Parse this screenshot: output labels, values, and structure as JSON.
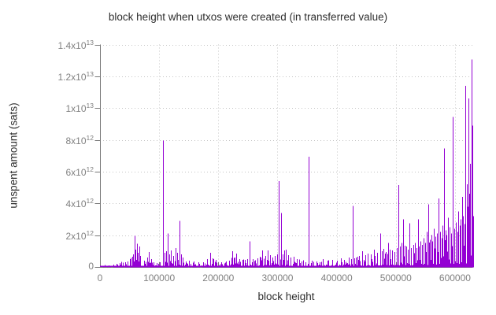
{
  "chart_data": {
    "type": "bar",
    "subtype": "impulses",
    "title": "block height when utxos were created (in transferred value)",
    "xlabel": "block height",
    "ylabel": "unspent amount (sats)",
    "xlim": [
      0,
      630000
    ],
    "ylim": [
      0,
      14000000000000.0
    ],
    "grid": "dotted",
    "legend": "none",
    "series_color": "#9400d3",
    "axis_color": "#777777",
    "grid_color": "#c4c4c4",
    "tick_text_color": "#808080",
    "title_text_color": "#2e2e2e",
    "x_ticks": [
      {
        "v": 0,
        "label": "0"
      },
      {
        "v": 100000,
        "label": "100000"
      },
      {
        "v": 200000,
        "label": "200000"
      },
      {
        "v": 300000,
        "label": "300000"
      },
      {
        "v": 400000,
        "label": "400000"
      },
      {
        "v": 500000,
        "label": "500000"
      },
      {
        "v": 600000,
        "label": "600000"
      }
    ],
    "y_ticks": [
      {
        "v": 0,
        "label": "0"
      },
      {
        "v": 2000000000000.0,
        "label": "2x10^12"
      },
      {
        "v": 4000000000000.0,
        "label": "4x10^12"
      },
      {
        "v": 6000000000000.0,
        "label": "6x10^12"
      },
      {
        "v": 8000000000000.0,
        "label": "8x10^12"
      },
      {
        "v": 10000000000000.0,
        "label": "1x10^13"
      },
      {
        "v": 12000000000000.0,
        "label": "1.2x10^13"
      },
      {
        "v": 14000000000000.0,
        "label": "1.4x10^13"
      }
    ],
    "major_spikes": [
      [
        8000,
        120000000000.0
      ],
      [
        15000,
        90000000000.0
      ],
      [
        22000,
        150000000000.0
      ],
      [
        28000,
        200000000000.0
      ],
      [
        33000,
        250000000000.0
      ],
      [
        36000,
        320000000000.0
      ],
      [
        39000,
        280000000000.0
      ],
      [
        43000,
        300000000000.0
      ],
      [
        47000,
        350000000000.0
      ],
      [
        51000,
        500000000000.0
      ],
      [
        54000,
        650000000000.0
      ],
      [
        56500,
        800000000000.0
      ],
      [
        58500,
        1950000000000.0
      ],
      [
        60500,
        1100000000000.0
      ],
      [
        62500,
        1450000000000.0
      ],
      [
        64500,
        900000000000.0
      ],
      [
        66500,
        1300000000000.0
      ],
      [
        68500,
        700000000000.0
      ],
      [
        74000,
        400000000000.0
      ],
      [
        80000,
        600000000000.0
      ],
      [
        83000,
        950000000000.0
      ],
      [
        86000,
        500000000000.0
      ],
      [
        91000,
        300000000000.0
      ],
      [
        96000,
        250000000000.0
      ],
      [
        101000,
        300000000000.0
      ],
      [
        106000,
        7950000000000.0
      ],
      [
        109500,
        900000000000.0
      ],
      [
        112000,
        1000000000000.0
      ],
      [
        114500,
        2100000000000.0
      ],
      [
        117000,
        800000000000.0
      ],
      [
        119500,
        1050000000000.0
      ],
      [
        124000,
        700000000000.0
      ],
      [
        128000,
        1200000000000.0
      ],
      [
        131000,
        900000000000.0
      ],
      [
        134500,
        2900000000000.0
      ],
      [
        137500,
        800000000000.0
      ],
      [
        140000,
        600000000000.0
      ],
      [
        145000,
        350000000000.0
      ],
      [
        150000,
        400000000000.0
      ],
      [
        158000,
        350000000000.0
      ],
      [
        166000,
        300000000000.0
      ],
      [
        174000,
        300000000000.0
      ],
      [
        181000,
        500000000000.0
      ],
      [
        186000,
        900000000000.0
      ],
      [
        190000,
        550000000000.0
      ],
      [
        196000,
        450000000000.0
      ],
      [
        205000,
        300000000000.0
      ],
      [
        213000,
        350000000000.0
      ],
      [
        218000,
        400000000000.0
      ],
      [
        223000,
        1000000000000.0
      ],
      [
        227000,
        600000000000.0
      ],
      [
        230000,
        850000000000.0
      ],
      [
        236000,
        500000000000.0
      ],
      [
        241000,
        450000000000.0
      ],
      [
        245000,
        450000000000.0
      ],
      [
        249000,
        500000000000.0
      ],
      [
        253000,
        1600000000000.0
      ],
      [
        258000,
        500000000000.0
      ],
      [
        262000,
        400000000000.0
      ],
      [
        266000,
        550000000000.0
      ],
      [
        271000,
        600000000000.0
      ],
      [
        274000,
        1050000000000.0
      ],
      [
        279000,
        700000000000.0
      ],
      [
        283000,
        1050000000000.0
      ],
      [
        288000,
        750000000000.0
      ],
      [
        292000,
        600000000000.0
      ],
      [
        296000,
        700000000000.0
      ],
      [
        299000,
        800000000000.0
      ],
      [
        302000,
        5400000000000.0
      ],
      [
        305500,
        3400000000000.0
      ],
      [
        309000,
        800000000000.0
      ],
      [
        312000,
        1040000000000.0
      ],
      [
        314000,
        1100000000000.0
      ],
      [
        318000,
        750000000000.0
      ],
      [
        322000,
        600000000000.0
      ],
      [
        327000,
        650000000000.0
      ],
      [
        333000,
        500000000000.0
      ],
      [
        340000,
        350000000000.0
      ],
      [
        347000,
        300000000000.0
      ],
      [
        352000,
        6950000000000.0
      ],
      [
        358000,
        400000000000.0
      ],
      [
        366000,
        350000000000.0
      ],
      [
        371000,
        300000000000.0
      ],
      [
        376000,
        500000000000.0
      ],
      [
        384000,
        400000000000.0
      ],
      [
        392000,
        450000000000.0
      ],
      [
        400000,
        400000000000.0
      ],
      [
        407000,
        550000000000.0
      ],
      [
        413000,
        450000000000.0
      ],
      [
        420000,
        600000000000.0
      ],
      [
        424000,
        500000000000.0
      ],
      [
        427000,
        3850000000000.0
      ],
      [
        430000,
        550000000000.0
      ],
      [
        433000,
        600000000000.0
      ],
      [
        438000,
        700000000000.0
      ],
      [
        443000,
        1000000000000.0
      ],
      [
        448000,
        750000000000.0
      ],
      [
        453000,
        850000000000.0
      ],
      [
        458000,
        800000000000.0
      ],
      [
        463000,
        1100000000000.0
      ],
      [
        468000,
        900000000000.0
      ],
      [
        473000,
        2100000000000.0
      ],
      [
        476000,
        1000000000000.0
      ],
      [
        479000,
        1150000000000.0
      ],
      [
        483000,
        950000000000.0
      ],
      [
        487000,
        1500000000000.0
      ],
      [
        490000,
        1100000000000.0
      ],
      [
        494000,
        1050000000000.0
      ],
      [
        498000,
        950000000000.0
      ],
      [
        501000,
        1200000000000.0
      ],
      [
        504000,
        5150000000000.0
      ],
      [
        507000,
        1300000000000.0
      ],
      [
        509500,
        1500000000000.0
      ],
      [
        512000,
        3000000000000.0
      ],
      [
        515000,
        1350000000000.0
      ],
      [
        517500,
        1300000000000.0
      ],
      [
        520000,
        1100000000000.0
      ],
      [
        523000,
        2750000000000.0
      ],
      [
        526000,
        1200000000000.0
      ],
      [
        529000,
        1400000000000.0
      ],
      [
        532000,
        1500000000000.0
      ],
      [
        534500,
        1200000000000.0
      ],
      [
        537000,
        3000000000000.0
      ],
      [
        539500,
        1300000000000.0
      ],
      [
        542000,
        1600000000000.0
      ],
      [
        544500,
        1400000000000.0
      ],
      [
        547000,
        1800000000000.0
      ],
      [
        550000,
        1500000000000.0
      ],
      [
        552000,
        2200000000000.0
      ],
      [
        554500,
        3950000000000.0
      ],
      [
        557000,
        1700000000000.0
      ],
      [
        559500,
        2000000000000.0
      ],
      [
        562000,
        1600000000000.0
      ],
      [
        564500,
        2400000000000.0
      ],
      [
        567000,
        1900000000000.0
      ],
      [
        569500,
        2100000000000.0
      ],
      [
        572000,
        4300000000000.0
      ],
      [
        574500,
        2200000000000.0
      ],
      [
        577000,
        1800000000000.0
      ],
      [
        579000,
        2600000000000.0
      ],
      [
        581000,
        7450000000000.0
      ],
      [
        583500,
        2300000000000.0
      ],
      [
        586000,
        2000000000000.0
      ],
      [
        588000,
        3100000000000.0
      ],
      [
        590500,
        2500000000000.0
      ],
      [
        593000,
        2100000000000.0
      ],
      [
        596000,
        9450000000000.0
      ],
      [
        598500,
        2400000000000.0
      ],
      [
        601000,
        2800000000000.0
      ],
      [
        603500,
        2200000000000.0
      ],
      [
        606000,
        3500000000000.0
      ],
      [
        608000,
        2600000000000.0
      ],
      [
        610000,
        3000000000000.0
      ],
      [
        612000,
        4400000000000.0
      ],
      [
        614000,
        3200000000000.0
      ],
      [
        616000,
        2700000000000.0
      ],
      [
        617500,
        11400000000000.0
      ],
      [
        619500,
        5200000000000.0
      ],
      [
        621500,
        3800000000000.0
      ],
      [
        623000,
        10600000000000.0
      ],
      [
        624500,
        4600000000000.0
      ],
      [
        626000,
        6500000000000.0
      ],
      [
        627800,
        13050000000000.0
      ],
      [
        629300,
        8900000000000.0
      ],
      [
        630400,
        3200000000000.0
      ]
    ],
    "noise_envelope": [
      [
        0,
        50000000000.0
      ],
      [
        20000,
        80000000000.0
      ],
      [
        30000,
        180000000000.0
      ],
      [
        45000,
        250000000000.0
      ],
      [
        52000,
        400000000000.0
      ],
      [
        58000,
        600000000000.0
      ],
      [
        65000,
        500000000000.0
      ],
      [
        72000,
        300000000000.0
      ],
      [
        80000,
        400000000000.0
      ],
      [
        90000,
        250000000000.0
      ],
      [
        100000,
        300000000000.0
      ],
      [
        110000,
        450000000000.0
      ],
      [
        120000,
        450000000000.0
      ],
      [
        130000,
        400000000000.0
      ],
      [
        140000,
        300000000000.0
      ],
      [
        150000,
        220000000000.0
      ],
      [
        165000,
        180000000000.0
      ],
      [
        180000,
        300000000000.0
      ],
      [
        195000,
        350000000000.0
      ],
      [
        205000,
        250000000000.0
      ],
      [
        215000,
        300000000000.0
      ],
      [
        225000,
        450000000000.0
      ],
      [
        240000,
        350000000000.0
      ],
      [
        255000,
        400000000000.0
      ],
      [
        270000,
        450000000000.0
      ],
      [
        285000,
        500000000000.0
      ],
      [
        300000,
        550000000000.0
      ],
      [
        315000,
        450000000000.0
      ],
      [
        330000,
        350000000000.0
      ],
      [
        345000,
        250000000000.0
      ],
      [
        360000,
        280000000000.0
      ],
      [
        375000,
        320000000000.0
      ],
      [
        390000,
        300000000000.0
      ],
      [
        405000,
        350000000000.0
      ],
      [
        420000,
        400000000000.0
      ],
      [
        435000,
        450000000000.0
      ],
      [
        450000,
        500000000000.0
      ],
      [
        465000,
        600000000000.0
      ],
      [
        480000,
        700000000000.0
      ],
      [
        495000,
        750000000000.0
      ],
      [
        510000,
        850000000000.0
      ],
      [
        525000,
        900000000000.0
      ],
      [
        540000,
        1050000000000.0
      ],
      [
        555000,
        1100000000000.0
      ],
      [
        570000,
        1250000000000.0
      ],
      [
        585000,
        1400000000000.0
      ],
      [
        600000,
        1550000000000.0
      ],
      [
        615000,
        1800000000000.0
      ],
      [
        630000,
        2100000000000.0
      ]
    ],
    "noise_seed": 1337,
    "noise_step": 1050
  }
}
